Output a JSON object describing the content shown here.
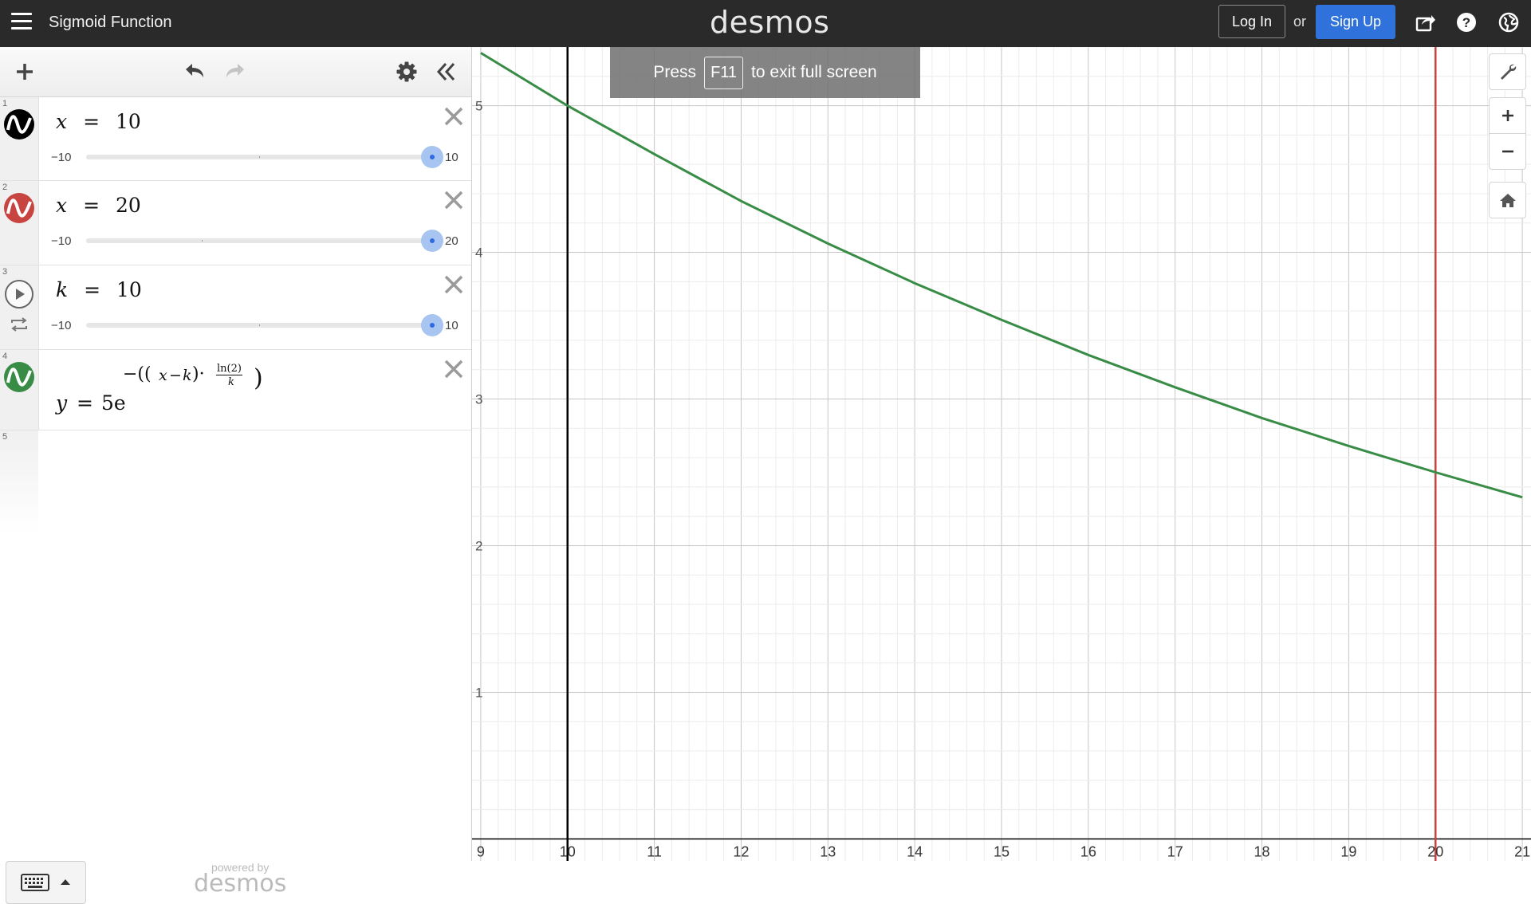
{
  "topbar": {
    "title": "Sigmoid Function",
    "brand": "desmos",
    "login_label": "Log In",
    "or_label": "or",
    "signup_label": "Sign Up",
    "icons": [
      "menu-icon",
      "share-icon",
      "help-icon",
      "globe-icon"
    ]
  },
  "panel": {
    "header_icons": [
      "add-icon",
      "undo-icon",
      "redo-icon",
      "settings-icon",
      "collapse-icon"
    ],
    "expressions": [
      {
        "num": "1",
        "color": "#000000",
        "lhs": "x",
        "eq": "=",
        "rhs": "10",
        "slider": {
          "min": "−10",
          "max": "10",
          "value": 10,
          "min_val": -10,
          "max_val": 10
        }
      },
      {
        "num": "2",
        "color": "#c74440",
        "lhs": "x",
        "eq": "=",
        "rhs": "20",
        "slider": {
          "min": "−10",
          "max": "20",
          "value": 20,
          "min_val": -10,
          "max_val": 20
        }
      },
      {
        "num": "3",
        "color": "#2d70b3",
        "lhs": "k",
        "eq": "=",
        "rhs": "10",
        "slider": {
          "min": "−10",
          "max": "10",
          "value": 10,
          "min_val": -10,
          "max_val": 10
        }
      },
      {
        "num": "4",
        "color": "#388c46",
        "lhs": "y",
        "eq": "=",
        "rhs_base": "5e",
        "exp_open": "−((",
        "exp_x": "x",
        "exp_minus": "−",
        "exp_k": "k",
        "exp_close": ")·",
        "frac_num": "ln(2)",
        "frac_den": "k",
        "exp_end": ")"
      },
      {
        "num": "5"
      }
    ],
    "powered_by": "powered by",
    "powered_brand": "desmos"
  },
  "fullscreen_tip": {
    "press": "Press",
    "key": "F11",
    "rest": "to exit full screen"
  },
  "graph": {
    "x_ticks": [
      "9",
      "10",
      "11",
      "12",
      "13",
      "14",
      "15",
      "16",
      "17",
      "18",
      "19",
      "20",
      "21"
    ],
    "y_ticks": [
      "1",
      "2",
      "3",
      "4",
      "5"
    ],
    "colors": {
      "green": "#388c46",
      "red": "#c74440",
      "axis": "#000000"
    }
  },
  "chart_data": {
    "type": "line",
    "series": [
      {
        "expr": "y = 5e^(−((x−k)·ln(2)/k)), k = 10",
        "color": "#388c46",
        "x": [
          9,
          10,
          11,
          12,
          13,
          14,
          15,
          16,
          17,
          18,
          19,
          20,
          21
        ],
        "y": [
          5.36,
          5.0,
          4.67,
          4.35,
          4.06,
          3.79,
          3.54,
          3.3,
          3.08,
          2.87,
          2.68,
          2.5,
          2.33
        ]
      }
    ],
    "vertical_lines": [
      {
        "x": 10,
        "color": "#000000"
      },
      {
        "x": 20,
        "color": "#c74440"
      }
    ],
    "xlim": [
      8.9,
      21.1
    ],
    "ylim": [
      -0.15,
      5.4
    ],
    "grid": true
  }
}
